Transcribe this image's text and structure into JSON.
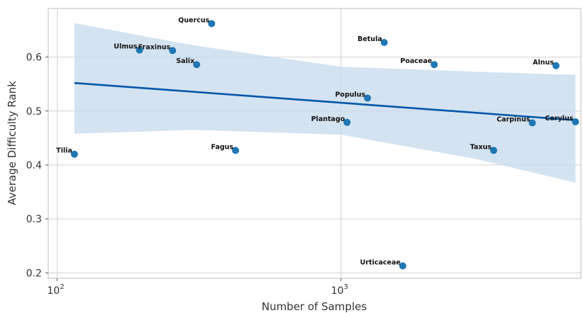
{
  "chart_data": {
    "type": "scatter",
    "xscale": "log",
    "xlabel": "Number of Samples",
    "ylabel": "Average Difficulty Rank",
    "xlim": [
      93,
      7000
    ],
    "ylim": [
      0.19,
      0.69
    ],
    "grid": true,
    "x_ticks": [
      {
        "value": 100,
        "base": "10",
        "exp": "2"
      },
      {
        "value": 1000,
        "base": "10",
        "exp": "3"
      }
    ],
    "y_ticks": [
      0.2,
      0.3,
      0.4,
      0.5,
      0.6
    ],
    "point_color": "#1f77b4",
    "fit_color": "#0057a8",
    "band_color": "#c6d9ec",
    "points": [
      {
        "label": "Quercus",
        "x": 350,
        "y": 0.662
      },
      {
        "label": "Ulmus",
        "x": 195,
        "y": 0.613
      },
      {
        "label": "Fraxinus",
        "x": 255,
        "y": 0.612
      },
      {
        "label": "Salix",
        "x": 310,
        "y": 0.586
      },
      {
        "label": "Tilia",
        "x": 115,
        "y": 0.42
      },
      {
        "label": "Fagus",
        "x": 425,
        "y": 0.427
      },
      {
        "label": "Betula",
        "x": 1420,
        "y": 0.627
      },
      {
        "label": "Poaceae",
        "x": 2130,
        "y": 0.586
      },
      {
        "label": "Alnus",
        "x": 5720,
        "y": 0.584
      },
      {
        "label": "Populus",
        "x": 1240,
        "y": 0.524
      },
      {
        "label": "Plantago",
        "x": 1050,
        "y": 0.479
      },
      {
        "label": "Carpinus",
        "x": 4720,
        "y": 0.478
      },
      {
        "label": "Corylus",
        "x": 6700,
        "y": 0.48
      },
      {
        "label": "Taxus",
        "x": 3450,
        "y": 0.427
      },
      {
        "label": "Urticaceae",
        "x": 1650,
        "y": 0.213
      }
    ],
    "fit": {
      "x": [
        115,
        6700
      ],
      "y": [
        0.552,
        0.483
      ]
    },
    "ci_band": {
      "x": [
        115,
        300,
        1000,
        3000,
        6700
      ],
      "upper": [
        0.663,
        0.622,
        0.582,
        0.573,
        0.567
      ],
      "lower": [
        0.458,
        0.465,
        0.456,
        0.411,
        0.367
      ]
    }
  }
}
